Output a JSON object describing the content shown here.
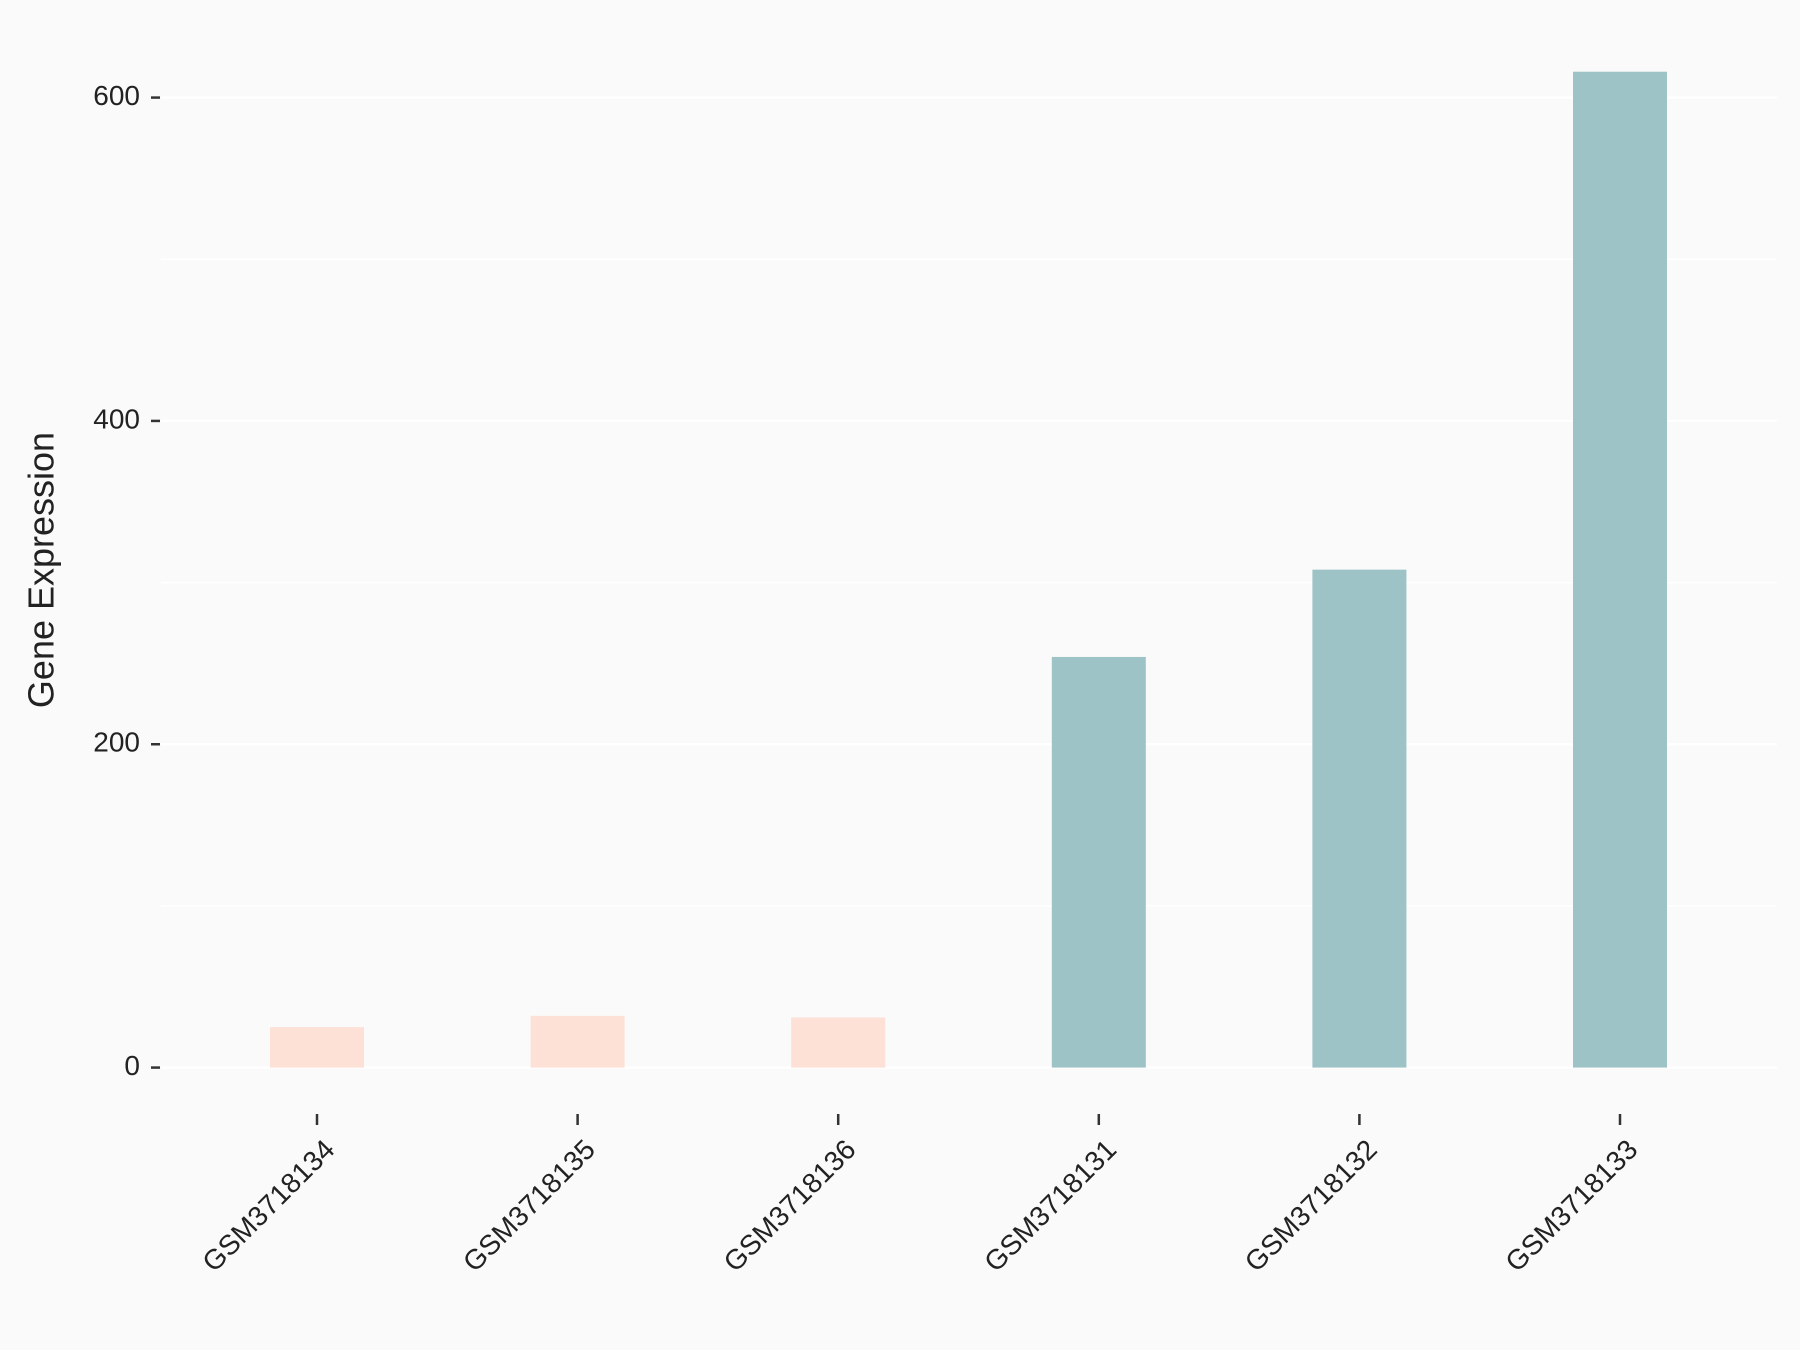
{
  "chart_data": {
    "type": "bar",
    "y_label": "Gene Expression",
    "categories": [
      "GSM3718134",
      "GSM3718135",
      "GSM3718136",
      "GSM3718131",
      "GSM3718132",
      "GSM3718133"
    ],
    "values": [
      25,
      32,
      31,
      254,
      308,
      616
    ],
    "colors": [
      "#fde0d6",
      "#fde0d6",
      "#fde0d6",
      "#9dc3c6",
      "#9dc3c6",
      "#9dc3c6"
    ],
    "ylim": [
      -31,
      647
    ],
    "yticks": [
      0,
      200,
      400,
      600
    ],
    "minor_gridlines": [
      100,
      300,
      500
    ],
    "grid": true
  }
}
